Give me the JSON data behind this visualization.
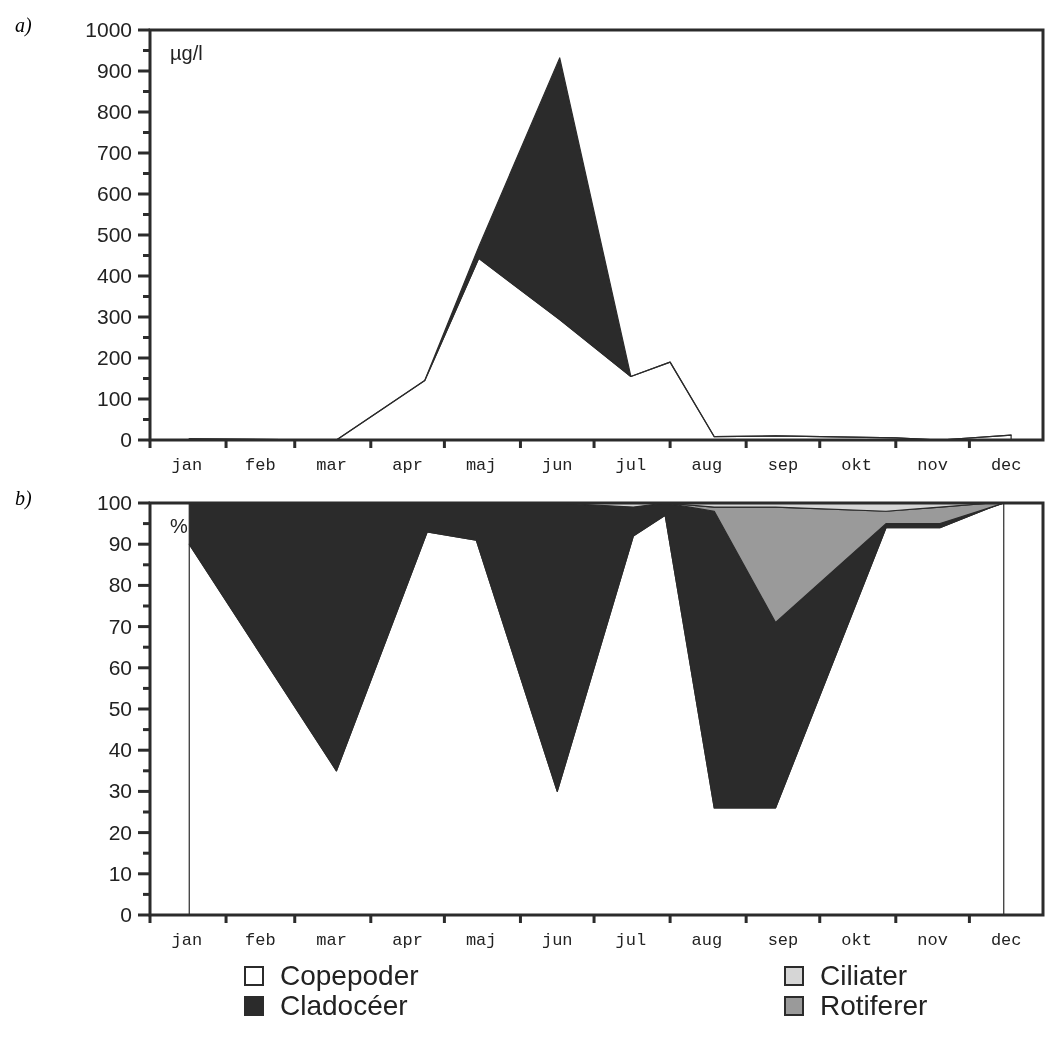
{
  "chart_data": [
    {
      "type": "area",
      "stacked": true,
      "title": "a)",
      "ylabel": "µg/l",
      "legend": false,
      "x": [
        "--01-17",
        "--03-18",
        "--04-23",
        "--05-15",
        "--06-17",
        "--07-16",
        "--08-01",
        "--08-19",
        "--09-13",
        "--11-01",
        "--11-19",
        "--12-18"
      ],
      "series": [
        {
          "color": "#ffffff",
          "values": [
            3,
            0,
            145,
            443,
            294,
            155,
            190,
            8,
            10,
            5,
            0,
            12
          ]
        },
        {
          "color": "#2b2b2b",
          "values": [
            0,
            0,
            0,
            28,
            638,
            0,
            0,
            0,
            0,
            0,
            0,
            0
          ]
        }
      ],
      "xlim": [
        "--01-01",
        "--12-31"
      ],
      "xticks": [
        {
          "value": "--01-01",
          "label": null
        },
        {
          "value": "--01-16",
          "label": "jan"
        },
        {
          "value": "--02-01",
          "label": null
        },
        {
          "value": "--02-15",
          "label": "feb"
        },
        {
          "value": "--03-01",
          "label": null
        },
        {
          "value": "--03-16",
          "label": "mar"
        },
        {
          "value": "--04-01",
          "label": null
        },
        {
          "value": "--04-16",
          "label": "apr"
        },
        {
          "value": "--05-01",
          "label": null
        },
        {
          "value": "--05-16",
          "label": "maj"
        },
        {
          "value": "--06-01",
          "label": null
        },
        {
          "value": "--06-16",
          "label": "jun"
        },
        {
          "value": "--07-01",
          "label": null
        },
        {
          "value": "--07-16",
          "label": "jul"
        },
        {
          "value": "--08-01",
          "label": null
        },
        {
          "value": "--08-16",
          "label": "aug"
        },
        {
          "value": "--09-01",
          "label": null
        },
        {
          "value": "--09-16",
          "label": "sep"
        },
        {
          "value": "--10-01",
          "label": null
        },
        {
          "value": "--10-16",
          "label": "okt"
        },
        {
          "value": "--11-01",
          "label": null
        },
        {
          "value": "--11-16",
          "label": "nov"
        },
        {
          "value": "--12-01",
          "label": null
        },
        {
          "value": "--12-16",
          "label": "dec"
        }
      ],
      "ylim": [
        0,
        1000
      ],
      "yticks": [
        0,
        {
          "value": 50,
          "label": null
        },
        100,
        {
          "value": 150,
          "label": null
        },
        200,
        {
          "value": 250,
          "label": null
        },
        300,
        {
          "value": 350,
          "label": null
        },
        400,
        {
          "value": 450,
          "label": null
        },
        500,
        {
          "value": 550,
          "label": null
        },
        600,
        {
          "value": 650,
          "label": null
        },
        700,
        {
          "value": 750,
          "label": null
        },
        800,
        {
          "value": 850,
          "label": null
        },
        900,
        {
          "value": 950,
          "label": null
        },
        1000
      ]
    },
    {
      "type": "area",
      "stacked": true,
      "title": "b)",
      "ylabel": "%",
      "legend": "bottom",
      "x": [
        "--01-17",
        "--03-18",
        "--04-24",
        "--05-14",
        "--06-16",
        "--07-17",
        "--07-30",
        "--08-19",
        "--09-13",
        "--10-28",
        "--11-19",
        "--12-10",
        "--12-15"
      ],
      "series": [
        {
          "name": "Copepoder",
          "color": "#ffffff",
          "values": [
            90,
            35,
            93,
            91,
            30,
            92,
            97,
            26,
            26,
            94,
            94,
            99,
            100
          ]
        },
        {
          "name": "Cladocéer",
          "color": "#2b2b2b",
          "values": [
            10,
            65,
            7,
            9,
            70,
            7,
            3,
            72,
            45,
            1,
            1,
            0,
            0
          ]
        },
        {
          "name": "Rotiferer",
          "color": "#9a9a9a",
          "values": [
            0,
            0,
            0,
            0,
            0,
            0,
            0,
            1,
            28,
            3,
            4,
            1,
            0
          ]
        },
        {
          "name": "Ciliater",
          "color": "#d6d6d6",
          "values": [
            0,
            0,
            0,
            0,
            0,
            1,
            0,
            1,
            1,
            2,
            1,
            0,
            0
          ]
        }
      ],
      "xlim": [
        "--01-01",
        "--12-31"
      ],
      "xticks": [
        {
          "value": "--01-01",
          "label": null
        },
        {
          "value": "--01-16",
          "label": "jan"
        },
        {
          "value": "--02-01",
          "label": null
        },
        {
          "value": "--02-15",
          "label": "feb"
        },
        {
          "value": "--03-01",
          "label": null
        },
        {
          "value": "--03-16",
          "label": "mar"
        },
        {
          "value": "--04-01",
          "label": null
        },
        {
          "value": "--04-16",
          "label": "apr"
        },
        {
          "value": "--05-01",
          "label": null
        },
        {
          "value": "--05-16",
          "label": "maj"
        },
        {
          "value": "--06-01",
          "label": null
        },
        {
          "value": "--06-16",
          "label": "jun"
        },
        {
          "value": "--07-01",
          "label": null
        },
        {
          "value": "--07-16",
          "label": "jul"
        },
        {
          "value": "--08-01",
          "label": null
        },
        {
          "value": "--08-16",
          "label": "aug"
        },
        {
          "value": "--09-01",
          "label": null
        },
        {
          "value": "--09-16",
          "label": "sep"
        },
        {
          "value": "--10-01",
          "label": null
        },
        {
          "value": "--10-16",
          "label": "okt"
        },
        {
          "value": "--11-01",
          "label": null
        },
        {
          "value": "--11-16",
          "label": "nov"
        },
        {
          "value": "--12-01",
          "label": null
        },
        {
          "value": "--12-16",
          "label": "dec"
        }
      ],
      "ylim": [
        0,
        100
      ],
      "yticks": [
        0,
        {
          "value": 5,
          "label": null
        },
        10,
        {
          "value": 15,
          "label": null
        },
        20,
        {
          "value": 25,
          "label": null
        },
        30,
        {
          "value": 35,
          "label": null
        },
        40,
        {
          "value": 45,
          "label": null
        },
        50,
        {
          "value": 55,
          "label": null
        },
        60,
        {
          "value": 65,
          "label": null
        },
        70,
        {
          "value": 75,
          "label": null
        },
        80,
        {
          "value": 85,
          "label": null
        },
        90,
        {
          "value": 95,
          "label": null
        },
        100
      ]
    }
  ]
}
